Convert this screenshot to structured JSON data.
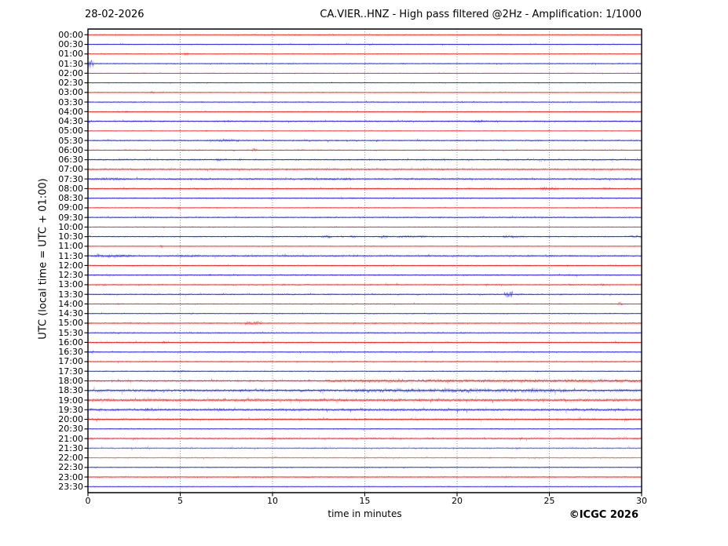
{
  "header": {
    "date": "28-02-2026",
    "title": "CA.VIER..HNZ - High pass filtered @2Hz - Amplification: 1/1000"
  },
  "footer": {
    "copyright": "©ICGC 2026"
  },
  "chart_data": {
    "type": "line",
    "subtype": "helicorder-dayplot",
    "title": "CA.VIER..HNZ - High pass filtered @2Hz - Amplification: 1/1000",
    "date": "28-02-2026",
    "xlabel": "time in minutes",
    "ylabel": "UTC (local time = UTC + 01:00)",
    "xlim": [
      0,
      30
    ],
    "x_ticks": [
      "0",
      "5",
      "10",
      "15",
      "20",
      "25",
      "30"
    ],
    "grid_minutes": [
      5,
      10,
      15,
      20,
      25
    ],
    "grid_color": "#6e6e6e",
    "trace_colors": {
      "hour_rows": "#ff0000",
      "half_hour_rows": "#0000ff"
    },
    "row_minutes_span": 30,
    "rows": [
      {
        "label": "00:00",
        "color": "#ff0000",
        "noise": 0.7,
        "events": []
      },
      {
        "label": "00:30",
        "color": "#0000ff",
        "noise": 0.7,
        "events": []
      },
      {
        "label": "01:00",
        "color": "#ff0000",
        "noise": 0.7,
        "events": [
          [
            5.2,
            5.45,
            2.2
          ]
        ]
      },
      {
        "label": "01:30",
        "color": "#0000ff",
        "noise": 0.8,
        "events": [
          [
            0.0,
            0.3,
            5.0
          ]
        ]
      },
      {
        "label": "02:00",
        "color": "#ff0000",
        "noise": 0.6,
        "events": []
      },
      {
        "label": "02:30",
        "color": "#0000ff",
        "noise": 0.6,
        "events": []
      },
      {
        "label": "03:00",
        "color": "#ff0000",
        "noise": 0.7,
        "events": [
          [
            3.4,
            3.6,
            2.2
          ]
        ]
      },
      {
        "label": "03:30",
        "color": "#0000ff",
        "noise": 0.8,
        "events": []
      },
      {
        "label": "04:00",
        "color": "#ff0000",
        "noise": 0.7,
        "events": [
          [
            2.0,
            2.15,
            1.5
          ]
        ]
      },
      {
        "label": "04:30",
        "color": "#0000ff",
        "noise": 1.0,
        "events": [
          [
            3.9,
            4.1,
            1.6
          ],
          [
            20.8,
            21.6,
            1.8
          ]
        ]
      },
      {
        "label": "05:00",
        "color": "#ff0000",
        "noise": 0.6,
        "events": [
          [
            6.3,
            6.5,
            1.3
          ]
        ]
      },
      {
        "label": "05:30",
        "color": "#0000ff",
        "noise": 1.0,
        "events": [
          [
            6.6,
            8.2,
            2.0
          ]
        ]
      },
      {
        "label": "06:00",
        "color": "#ff0000",
        "noise": 0.8,
        "events": [
          [
            5.1,
            5.3,
            1.8
          ],
          [
            8.9,
            9.15,
            2.6
          ]
        ]
      },
      {
        "label": "06:30",
        "color": "#0000ff",
        "noise": 1.1,
        "events": [
          [
            7.0,
            7.5,
            1.8
          ]
        ]
      },
      {
        "label": "07:00",
        "color": "#ff0000",
        "noise": 1.3,
        "events": []
      },
      {
        "label": "07:30",
        "color": "#0000ff",
        "noise": 1.3,
        "events": [
          [
            0.2,
            2.0,
            1.8
          ],
          [
            11.5,
            14.5,
            1.6
          ]
        ]
      },
      {
        "label": "08:00",
        "color": "#ff0000",
        "noise": 1.0,
        "events": [
          [
            24.5,
            25.5,
            2.6
          ],
          [
            27.9,
            28.3,
            1.8
          ]
        ]
      },
      {
        "label": "08:30",
        "color": "#0000ff",
        "noise": 0.8,
        "events": []
      },
      {
        "label": "09:00",
        "color": "#ff0000",
        "noise": 0.7,
        "events": [
          [
            4.85,
            5.0,
            2.4
          ]
        ]
      },
      {
        "label": "09:30",
        "color": "#0000ff",
        "noise": 1.0,
        "events": [
          [
            3.2,
            3.6,
            1.5
          ]
        ]
      },
      {
        "label": "10:00",
        "color": "#ff0000",
        "noise": 0.8,
        "events": []
      },
      {
        "label": "10:30",
        "color": "#0000ff",
        "noise": 0.9,
        "events": [
          [
            12.7,
            13.2,
            2.4
          ],
          [
            14.2,
            14.5,
            2.0
          ],
          [
            15.9,
            16.25,
            2.6
          ],
          [
            16.8,
            18.4,
            1.6
          ],
          [
            22.5,
            23.6,
            2.0
          ],
          [
            29.4,
            30.0,
            1.8
          ]
        ]
      },
      {
        "label": "11:00",
        "color": "#ff0000",
        "noise": 0.7,
        "events": [
          [
            3.9,
            4.05,
            4.0
          ]
        ]
      },
      {
        "label": "11:30",
        "color": "#0000ff",
        "noise": 1.2,
        "events": [
          [
            0.3,
            2.3,
            2.2
          ],
          [
            5.0,
            6.0,
            1.6
          ]
        ]
      },
      {
        "label": "12:00",
        "color": "#ff0000",
        "noise": 0.8,
        "events": []
      },
      {
        "label": "12:30",
        "color": "#0000ff",
        "noise": 0.9,
        "events": [
          [
            6.5,
            6.7,
            1.4
          ]
        ]
      },
      {
        "label": "13:00",
        "color": "#ff0000",
        "noise": 1.0,
        "events": [
          [
            0.8,
            1.0,
            1.6
          ],
          [
            10.5,
            10.7,
            1.4
          ],
          [
            27.8,
            28.0,
            1.5
          ]
        ]
      },
      {
        "label": "13:30",
        "color": "#0000ff",
        "noise": 1.0,
        "events": [
          [
            22.55,
            23.0,
            4.2
          ],
          [
            23.3,
            23.55,
            1.8
          ]
        ]
      },
      {
        "label": "14:00",
        "color": "#ff0000",
        "noise": 0.8,
        "events": [
          [
            1.5,
            1.7,
            1.4
          ],
          [
            28.7,
            28.95,
            2.6
          ]
        ]
      },
      {
        "label": "14:30",
        "color": "#0000ff",
        "noise": 0.7,
        "events": []
      },
      {
        "label": "15:00",
        "color": "#ff0000",
        "noise": 1.0,
        "events": [
          [
            8.5,
            9.4,
            2.6
          ],
          [
            11.8,
            12.0,
            1.6
          ]
        ]
      },
      {
        "label": "15:30",
        "color": "#0000ff",
        "noise": 0.8,
        "events": []
      },
      {
        "label": "16:00",
        "color": "#ff0000",
        "noise": 0.9,
        "events": [
          [
            4.0,
            4.4,
            1.8
          ],
          [
            9.5,
            9.8,
            1.6
          ]
        ]
      },
      {
        "label": "16:30",
        "color": "#0000ff",
        "noise": 0.9,
        "events": [
          [
            0.1,
            0.35,
            2.6
          ]
        ]
      },
      {
        "label": "17:00",
        "color": "#ff0000",
        "noise": 0.9,
        "events": []
      },
      {
        "label": "17:30",
        "color": "#0000ff",
        "noise": 0.8,
        "events": [
          [
            4.5,
            5.5,
            1.3
          ]
        ]
      },
      {
        "label": "18:00",
        "color": "#ff0000",
        "noise": 1.5,
        "events": [
          [
            13.0,
            30.0,
            2.4
          ]
        ]
      },
      {
        "label": "18:30",
        "color": "#0000ff",
        "noise": 2.0,
        "events": [
          [
            14.5,
            26.0,
            2.8
          ]
        ]
      },
      {
        "label": "19:00",
        "color": "#ff0000",
        "noise": 2.2,
        "events": []
      },
      {
        "label": "19:30",
        "color": "#0000ff",
        "noise": 1.8,
        "events": [
          [
            3.1,
            3.5,
            2.4
          ],
          [
            6.8,
            7.4,
            2.2
          ]
        ]
      },
      {
        "label": "20:00",
        "color": "#ff0000",
        "noise": 1.4,
        "events": []
      },
      {
        "label": "20:30",
        "color": "#0000ff",
        "noise": 0.8,
        "events": []
      },
      {
        "label": "21:00",
        "color": "#ff0000",
        "noise": 1.3,
        "events": [
          [
            9.8,
            10.15,
            2.2
          ]
        ]
      },
      {
        "label": "21:30",
        "color": "#0000ff",
        "noise": 1.3,
        "soft": true,
        "events": []
      },
      {
        "label": "22:00",
        "color": "#ff0000",
        "noise": 1.1,
        "soft": true,
        "events": []
      },
      {
        "label": "22:30",
        "color": "#0000ff",
        "noise": 0.7,
        "events": []
      },
      {
        "label": "23:00",
        "color": "#ff0000",
        "noise": 0.9,
        "events": []
      },
      {
        "label": "23:30",
        "color": "#0000ff",
        "noise": 0.6,
        "events": []
      }
    ]
  }
}
